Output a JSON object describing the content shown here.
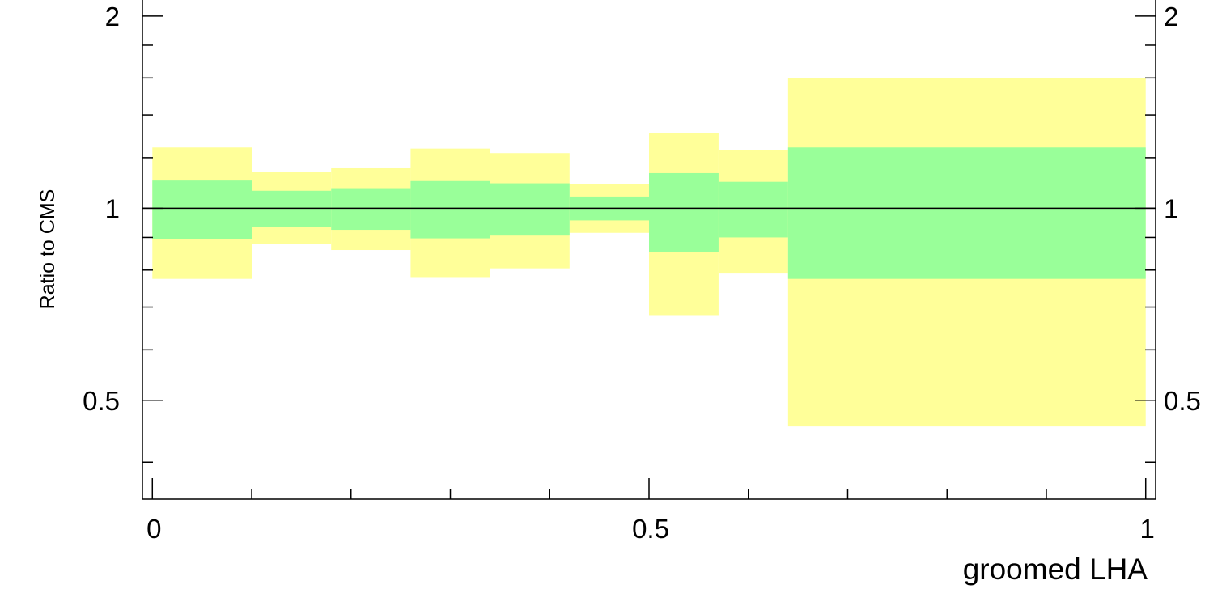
{
  "chart_data": {
    "type": "area",
    "xlabel": "groomed LHA",
    "ylabel": "Ratio to CMS",
    "xlim": [
      -0.01,
      1.01
    ],
    "ylim": [
      0.35,
      2.6
    ],
    "y_scale": "log",
    "grid": false,
    "x_ticks": [
      {
        "value": 0,
        "label": "0"
      },
      {
        "value": 0.5,
        "label": "0.5"
      },
      {
        "value": 1,
        "label": "1"
      }
    ],
    "y_ticks": [
      {
        "value": 0.5,
        "label": "0.5"
      },
      {
        "value": 1,
        "label": "1"
      },
      {
        "value": 2,
        "label": "2"
      }
    ],
    "reference_line": 1,
    "bins": [
      {
        "x_low": 0.0,
        "x_high": 0.1,
        "inner_low": 0.895,
        "inner_high": 1.105,
        "outer_low": 0.775,
        "outer_high": 1.245
      },
      {
        "x_low": 0.1,
        "x_high": 0.18,
        "inner_low": 0.935,
        "inner_high": 1.065,
        "outer_low": 0.88,
        "outer_high": 1.14
      },
      {
        "x_low": 0.18,
        "x_high": 0.26,
        "inner_low": 0.925,
        "inner_high": 1.075,
        "outer_low": 0.86,
        "outer_high": 1.155
      },
      {
        "x_low": 0.26,
        "x_high": 0.34,
        "inner_low": 0.897,
        "inner_high": 1.103,
        "outer_low": 0.78,
        "outer_high": 1.24
      },
      {
        "x_low": 0.34,
        "x_high": 0.42,
        "inner_low": 0.906,
        "inner_high": 1.094,
        "outer_low": 0.805,
        "outer_high": 1.22
      },
      {
        "x_low": 0.42,
        "x_high": 0.5,
        "inner_low": 0.957,
        "inner_high": 1.043,
        "outer_low": 0.915,
        "outer_high": 1.09
      },
      {
        "x_low": 0.5,
        "x_high": 0.57,
        "inner_low": 0.855,
        "inner_high": 1.135,
        "outer_low": 0.68,
        "outer_high": 1.31
      },
      {
        "x_low": 0.57,
        "x_high": 0.64,
        "inner_low": 0.9,
        "inner_high": 1.1,
        "outer_low": 0.79,
        "outer_high": 1.235
      },
      {
        "x_low": 0.64,
        "x_high": 1.0,
        "inner_low": 0.775,
        "inner_high": 1.245,
        "outer_low": 0.455,
        "outer_high": 1.6
      }
    ],
    "colors": {
      "inner_band": "#99ff99",
      "outer_band": "#ffff99",
      "axis": "#000000"
    }
  }
}
